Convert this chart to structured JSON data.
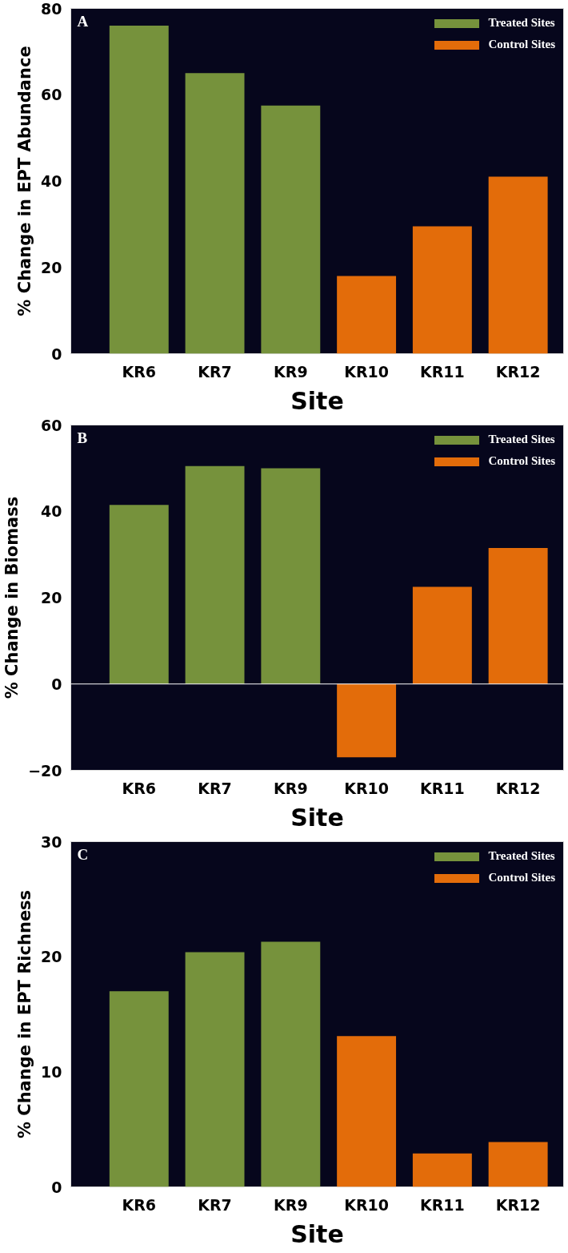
{
  "chart_data": [
    {
      "type": "bar",
      "annotations": [
        "A"
      ],
      "xlabel": "Site",
      "ylabel": "% Change in EPT Abundance",
      "categories": [
        "KR6",
        "KR7",
        "KR9",
        "KR10",
        "KR11",
        "KR12"
      ],
      "series": [
        {
          "name": "Treated Sites",
          "color": "#76923c",
          "values": [
            76,
            65,
            57.5,
            null,
            null,
            null
          ]
        },
        {
          "name": "Control Sites",
          "color": "#e36c0a",
          "values": [
            null,
            null,
            null,
            18,
            29.5,
            41
          ]
        }
      ],
      "ylim": [
        0,
        80
      ],
      "yticks": [
        0,
        20,
        40,
        60,
        80
      ],
      "grid": false,
      "legend": "top right"
    },
    {
      "type": "bar",
      "annotations": [
        "B"
      ],
      "xlabel": "Site",
      "ylabel": "% Change in Biomass",
      "categories": [
        "KR6",
        "KR7",
        "KR9",
        "KR10",
        "KR11",
        "KR12"
      ],
      "series": [
        {
          "name": "Treated Sites",
          "color": "#76923c",
          "values": [
            41.5,
            50.5,
            50,
            null,
            null,
            null
          ]
        },
        {
          "name": "Control Sites",
          "color": "#e36c0a",
          "values": [
            null,
            null,
            null,
            -17,
            22.5,
            31.5
          ]
        }
      ],
      "ylim": [
        -20,
        60
      ],
      "yticks": [
        -20,
        0,
        20,
        40,
        60
      ],
      "grid": false,
      "legend": "top right",
      "ref_lines": [
        {
          "axis": "y",
          "value": 0,
          "color": "#ffffff"
        }
      ]
    },
    {
      "type": "bar",
      "annotations": [
        "C"
      ],
      "xlabel": "Site",
      "ylabel": "% Change in EPT Richness",
      "categories": [
        "KR6",
        "KR7",
        "KR9",
        "KR10",
        "KR11",
        "KR12"
      ],
      "series": [
        {
          "name": "Treated Sites",
          "color": "#76923c",
          "values": [
            17,
            20.4,
            21.3,
            null,
            null,
            null
          ]
        },
        {
          "name": "Control Sites",
          "color": "#e36c0a",
          "values": [
            null,
            null,
            null,
            13.1,
            2.9,
            3.9
          ]
        }
      ],
      "ylim": [
        0,
        30
      ],
      "yticks": [
        0,
        10,
        20,
        30
      ],
      "grid": false,
      "legend": "top right"
    }
  ]
}
